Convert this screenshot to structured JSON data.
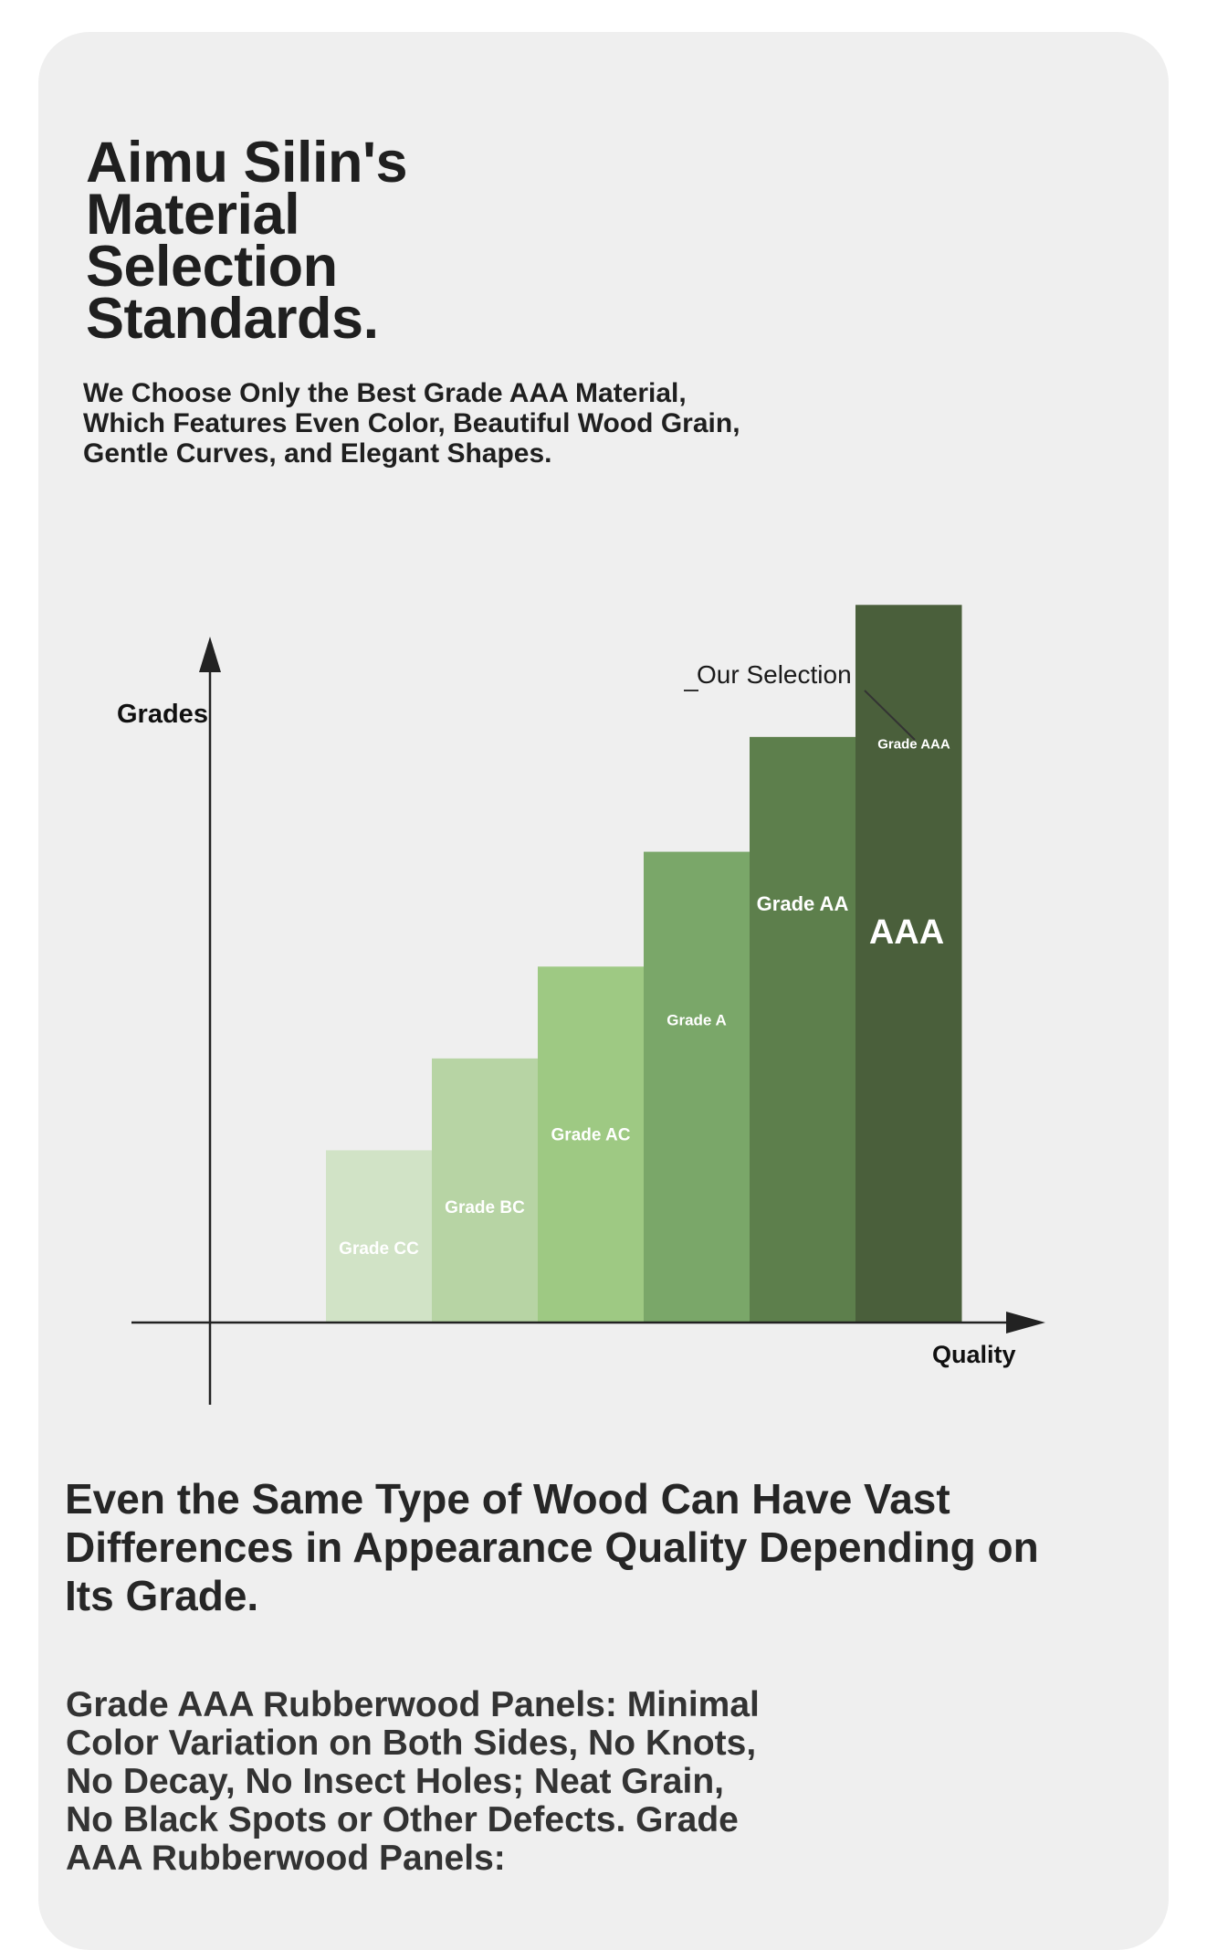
{
  "header": {
    "title_lines": [
      "Aimu Silin's",
      "Material",
      "Selection",
      "Standards."
    ],
    "subtitle_lines": [
      "We Choose Only the Best Grade AAA Material,",
      "Which Features Even Color, Beautiful Wood Grain,",
      "Gentle Curves, and Elegant Shapes."
    ]
  },
  "chart_data": {
    "type": "bar",
    "ylabel": "Grades",
    "xlabel": "Quality",
    "categories": [
      "Grade CC",
      "Grade BC",
      "Grade AC",
      "Grade A",
      "Grade AA",
      "Grade AAA"
    ],
    "values": [
      1.5,
      2.3,
      3.1,
      4.1,
      5.1,
      6.25
    ],
    "ylim": [
      0,
      7
    ],
    "colors": [
      "#d1e3c6",
      "#b7d4a4",
      "#9ec983",
      "#7aa769",
      "#5d7f4c",
      "#4a5f3b"
    ],
    "highlight_label": "AAA",
    "annotation": "Our Selection",
    "grid": false,
    "legend": "none"
  },
  "body": {
    "heading_lines": [
      "Even the Same Type of Wood Can Have Vast",
      "Differences in Appearance Quality Depending on",
      "Its Grade."
    ],
    "paragraph_lines": [
      "Grade AAA Rubberwood Panels: Minimal",
      "Color Variation on Both Sides, No Knots,",
      "No Decay, No Insect Holes; Neat Grain,",
      "No Black Spots or Other Defects. Grade",
      "AAA Rubberwood Panels:"
    ]
  }
}
